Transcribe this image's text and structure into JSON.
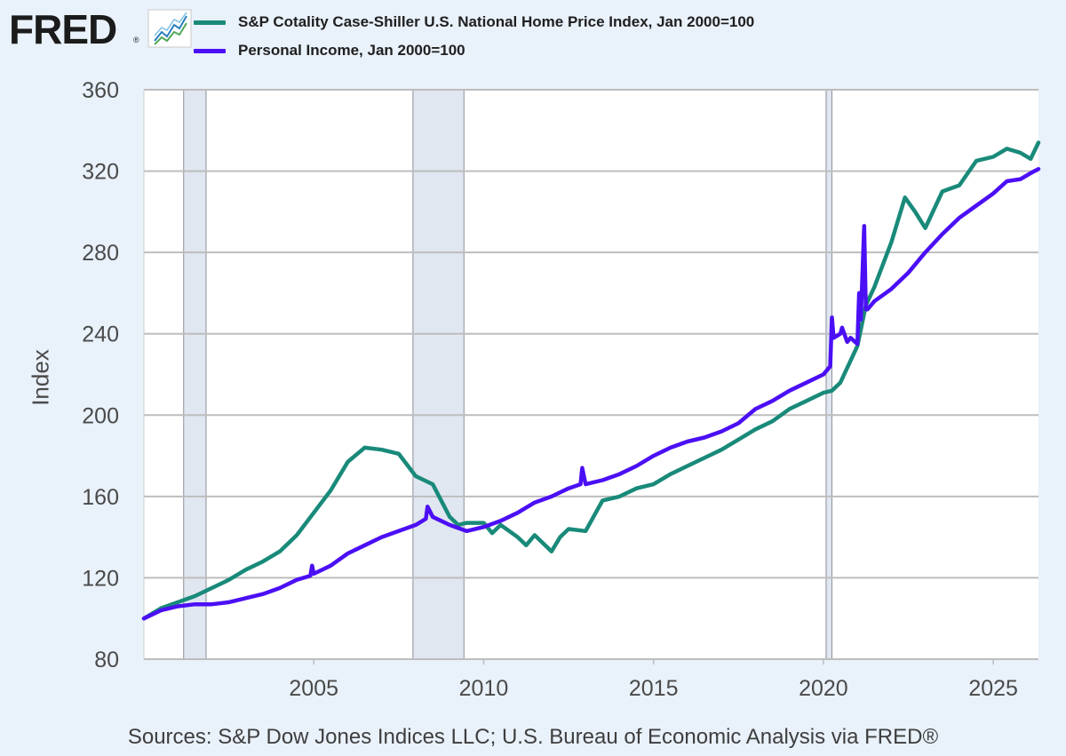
{
  "logo": {
    "wordmark": "FRED",
    "registered": "®",
    "icon": "line-chart-icon"
  },
  "sources": "Sources: S&P Dow Jones Indices LLC; U.S. Bureau of Economic Analysis via FRED®",
  "colors": {
    "background": "#e9f1fa",
    "plot_background": "#ffffff",
    "gridline": "#bdbdbd",
    "recession": "#e1e7f0",
    "hpi_line": "#198a7a",
    "pi_line": "#4b0ff5"
  },
  "chart_data": {
    "type": "line",
    "title": "",
    "xlabel": "",
    "ylabel": "Index",
    "xlim": [
      2000.0,
      2026.33
    ],
    "ylim": [
      80,
      360
    ],
    "y_ticks": [
      80,
      120,
      160,
      200,
      240,
      280,
      320,
      360
    ],
    "x_ticks": [
      2005,
      2010,
      2015,
      2020,
      2025
    ],
    "grid": "horizontal",
    "legend": "top-left",
    "recessions": [
      [
        2001.17,
        2001.83
      ],
      [
        2007.92,
        2009.42
      ],
      [
        2020.08,
        2020.25
      ]
    ],
    "series": [
      {
        "name": "S&P Cotality Case-Shiller U.S. National Home Price Index, Jan 2000=100",
        "color": "#198a7a",
        "x": [
          2000.0,
          2000.5,
          2001.0,
          2001.5,
          2002.0,
          2002.5,
          2003.0,
          2003.5,
          2004.0,
          2004.5,
          2005.0,
          2005.5,
          2006.0,
          2006.5,
          2007.0,
          2007.5,
          2008.0,
          2008.5,
          2009.0,
          2009.25,
          2009.5,
          2010.0,
          2010.25,
          2010.5,
          2011.0,
          2011.25,
          2011.5,
          2012.0,
          2012.25,
          2012.5,
          2013.0,
          2013.5,
          2014.0,
          2014.5,
          2015.0,
          2015.5,
          2016.0,
          2016.5,
          2017.0,
          2017.5,
          2018.0,
          2018.5,
          2019.0,
          2019.5,
          2020.0,
          2020.25,
          2020.5,
          2021.0,
          2021.25,
          2021.5,
          2022.0,
          2022.4,
          2022.7,
          2023.0,
          2023.5,
          2024.0,
          2024.5,
          2025.0,
          2025.4,
          2025.8,
          2026.1,
          2026.33
        ],
        "y": [
          100,
          105,
          108,
          111,
          115,
          119,
          124,
          128,
          133,
          141,
          152,
          163,
          177,
          184,
          183,
          181,
          170,
          166,
          150,
          146,
          147,
          147,
          142,
          146,
          140,
          136,
          141,
          133,
          140,
          144,
          143,
          158,
          160,
          164,
          166,
          171,
          175,
          179,
          183,
          188,
          193,
          197,
          203,
          207,
          211,
          212,
          216,
          234,
          254,
          263,
          285,
          307,
          300,
          292,
          310,
          313,
          325,
          327,
          331,
          329,
          326,
          334
        ]
      },
      {
        "name": "Personal Income, Jan 2000=100",
        "color": "#4b0ff5",
        "x": [
          2000.0,
          2000.5,
          2001.0,
          2001.5,
          2002.0,
          2002.5,
          2003.0,
          2003.5,
          2004.0,
          2004.5,
          2004.9,
          2004.95,
          2005.0,
          2005.5,
          2006.0,
          2006.5,
          2007.0,
          2007.5,
          2008.0,
          2008.3,
          2008.35,
          2008.5,
          2009.0,
          2009.5,
          2010.0,
          2010.5,
          2011.0,
          2011.5,
          2012.0,
          2012.5,
          2012.85,
          2012.9,
          2013.0,
          2013.5,
          2014.0,
          2014.5,
          2015.0,
          2015.5,
          2016.0,
          2016.5,
          2017.0,
          2017.5,
          2018.0,
          2018.5,
          2019.0,
          2019.5,
          2020.0,
          2020.2,
          2020.25,
          2020.3,
          2020.5,
          2020.55,
          2020.7,
          2020.8,
          2021.0,
          2021.05,
          2021.1,
          2021.2,
          2021.25,
          2021.3,
          2021.5,
          2022.0,
          2022.5,
          2023.0,
          2023.5,
          2024.0,
          2024.5,
          2025.0,
          2025.4,
          2025.8,
          2026.1,
          2026.33
        ],
        "y": [
          100,
          104,
          106,
          107,
          107,
          108,
          110,
          112,
          115,
          119,
          121,
          126,
          122,
          126,
          132,
          136,
          140,
          143,
          146,
          149,
          155,
          150,
          146,
          143,
          145,
          148,
          152,
          157,
          160,
          164,
          166,
          174,
          166,
          168,
          171,
          175,
          180,
          184,
          187,
          189,
          192,
          196,
          203,
          207,
          212,
          216,
          220,
          224,
          248,
          238,
          240,
          243,
          236,
          238,
          235,
          260,
          247,
          293,
          252,
          252,
          256,
          262,
          270,
          280,
          289,
          297,
          303,
          309,
          315,
          316,
          319,
          321
        ]
      }
    ]
  }
}
